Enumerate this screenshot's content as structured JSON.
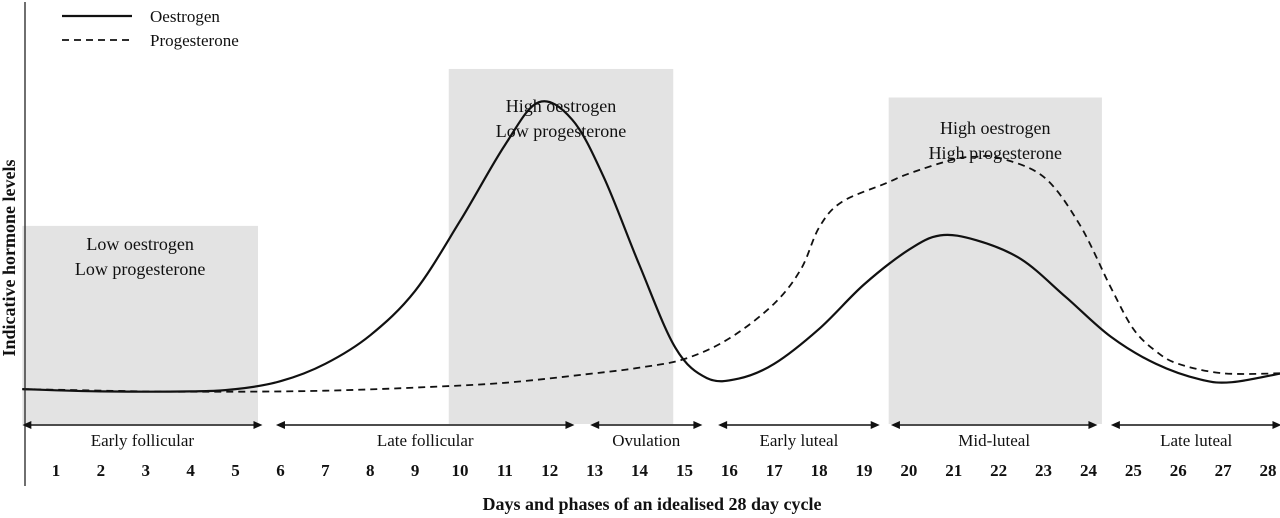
{
  "chart_data": {
    "type": "line",
    "title": "",
    "xlabel": "Days and phases of an idealised 28 day cycle",
    "ylabel": "Indicative hormone levels",
    "x": [
      1,
      2,
      3,
      4,
      5,
      6,
      7,
      8,
      9,
      10,
      11,
      12,
      13,
      14,
      15,
      16,
      17,
      18,
      19,
      20,
      21,
      22,
      23,
      24,
      25,
      26,
      27,
      28
    ],
    "xlim": [
      0.25,
      28.3
    ],
    "ylim": [
      0,
      1
    ],
    "grid": false,
    "legend_position": "top-left",
    "series": [
      {
        "name": "Oestrogen",
        "line_style": "solid",
        "points": [
          [
            0.25,
            0.05
          ],
          [
            2,
            0.043
          ],
          [
            4,
            0.043
          ],
          [
            5,
            0.05
          ],
          [
            6,
            0.075
          ],
          [
            7,
            0.13
          ],
          [
            8,
            0.22
          ],
          [
            9,
            0.36
          ],
          [
            10,
            0.58
          ],
          [
            11,
            0.82
          ],
          [
            11.75,
            0.955
          ],
          [
            12.5,
            0.9
          ],
          [
            13.2,
            0.72
          ],
          [
            14,
            0.44
          ],
          [
            14.8,
            0.18
          ],
          [
            15.5,
            0.085
          ],
          [
            16.2,
            0.083
          ],
          [
            17,
            0.13
          ],
          [
            18,
            0.24
          ],
          [
            19,
            0.38
          ],
          [
            20,
            0.49
          ],
          [
            20.7,
            0.535
          ],
          [
            21.5,
            0.52
          ],
          [
            22.5,
            0.46
          ],
          [
            23.5,
            0.34
          ],
          [
            24.5,
            0.215
          ],
          [
            25.5,
            0.13
          ],
          [
            26.5,
            0.08
          ],
          [
            27.2,
            0.072
          ],
          [
            28.3,
            0.1
          ]
        ]
      },
      {
        "name": "Progesterone",
        "line_style": "dashed",
        "points": [
          [
            0.25,
            0.05
          ],
          [
            3,
            0.043
          ],
          [
            5,
            0.042
          ],
          [
            7,
            0.045
          ],
          [
            9,
            0.055
          ],
          [
            11,
            0.07
          ],
          [
            13,
            0.1
          ],
          [
            14,
            0.118
          ],
          [
            15,
            0.145
          ],
          [
            16,
            0.21
          ],
          [
            17,
            0.32
          ],
          [
            17.6,
            0.43
          ],
          [
            18,
            0.56
          ],
          [
            18.5,
            0.64
          ],
          [
            19.5,
            0.7
          ],
          [
            20,
            0.73
          ],
          [
            21,
            0.775
          ],
          [
            21.5,
            0.783
          ],
          [
            22,
            0.78
          ],
          [
            23,
            0.72
          ],
          [
            23.8,
            0.57
          ],
          [
            24.5,
            0.37
          ],
          [
            25,
            0.24
          ],
          [
            25.5,
            0.17
          ],
          [
            26,
            0.13
          ],
          [
            27,
            0.1
          ],
          [
            28.3,
            0.1
          ]
        ]
      }
    ],
    "bands": [
      {
        "start": 0.25,
        "end": 5.5,
        "label_lines": [
          "Low oestrogen",
          "Low progesterone"
        ],
        "label_y": 0.565,
        "top": 0.565
      },
      {
        "start": 9.75,
        "end": 14.75,
        "label_lines": [
          "High oestrogen",
          "Low progesterone"
        ],
        "label_y": 1.0,
        "top": 1.06
      },
      {
        "start": 19.55,
        "end": 24.3,
        "label_lines": [
          "High oestrogen",
          "High progesterone"
        ],
        "label_y": 0.93,
        "top": 0.97
      }
    ],
    "phases": [
      {
        "label": "Early follicular",
        "start": 0.25,
        "end": 5.6
      },
      {
        "label": "Late follicular",
        "start": 5.9,
        "end": 12.55
      },
      {
        "label": "Ovulation",
        "start": 12.9,
        "end": 15.4
      },
      {
        "label": "Early luteal",
        "start": 15.75,
        "end": 19.35
      },
      {
        "label": "Mid-luteal",
        "start": 19.6,
        "end": 24.2
      },
      {
        "label": "Late luteal",
        "start": 24.5,
        "end": 28.3
      }
    ]
  }
}
